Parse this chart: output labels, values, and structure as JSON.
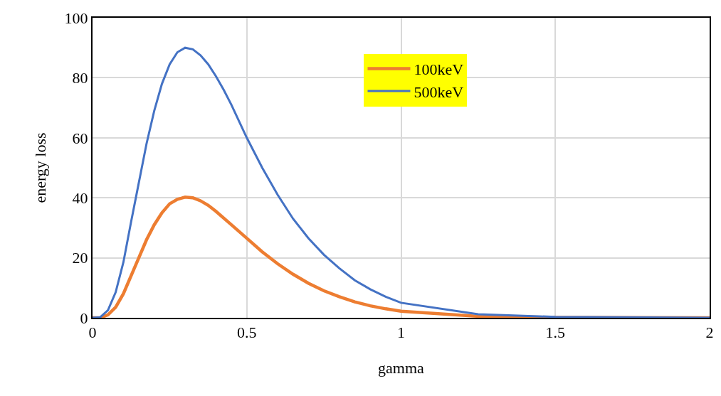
{
  "chart_data": {
    "type": "line",
    "xlabel": "gamma",
    "ylabel": "energy loss",
    "xlim": [
      0,
      2
    ],
    "xticks": [
      0,
      0.5,
      1,
      1.5,
      2
    ],
    "ylim": [
      0,
      100
    ],
    "yticks": [
      0,
      20,
      40,
      60,
      80,
      100
    ],
    "grid": true,
    "legend": "top right",
    "marker": "none",
    "line_style": "solid",
    "series": [
      {
        "name": "100keV",
        "color": "#ed7d31",
        "x": [
          0,
          0.025,
          0.05,
          0.075,
          0.1,
          0.125,
          0.15,
          0.175,
          0.2,
          0.225,
          0.25,
          0.275,
          0.3,
          0.325,
          0.35,
          0.375,
          0.4,
          0.45,
          0.5,
          0.55,
          0.6,
          0.65,
          0.7,
          0.75,
          0.8,
          0.85,
          0.9,
          0.95,
          1,
          1.25,
          1.5,
          2
        ],
        "values": [
          0,
          0,
          1,
          3.5,
          8,
          14,
          20,
          26,
          31,
          35,
          38,
          39.5,
          40.2,
          40,
          39,
          37.5,
          35.5,
          31,
          26.5,
          22,
          18,
          14.5,
          11.5,
          9,
          7,
          5.3,
          4,
          3,
          2.2,
          0.5,
          0.1,
          0
        ]
      },
      {
        "name": "500keV",
        "color": "#4472c4",
        "x": [
          0,
          0.025,
          0.05,
          0.075,
          0.1,
          0.125,
          0.15,
          0.175,
          0.2,
          0.225,
          0.25,
          0.275,
          0.3,
          0.325,
          0.35,
          0.375,
          0.4,
          0.425,
          0.45,
          0.5,
          0.55,
          0.6,
          0.65,
          0.7,
          0.75,
          0.8,
          0.85,
          0.9,
          0.95,
          1,
          1.25,
          1.5,
          2
        ],
        "values": [
          0,
          0.2,
          2.5,
          8.5,
          18.5,
          32,
          45,
          58,
          69,
          78,
          84.5,
          88.5,
          90,
          89.5,
          87.5,
          84.5,
          80.5,
          76,
          71,
          60,
          50,
          41,
          33,
          26.5,
          21,
          16.5,
          12.5,
          9.5,
          7,
          5,
          1.2,
          0.3,
          0
        ]
      }
    ]
  }
}
